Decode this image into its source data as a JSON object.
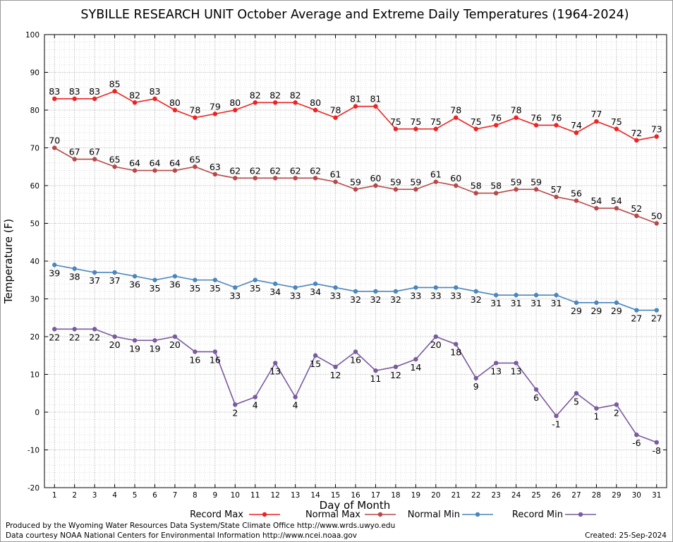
{
  "chart_data": {
    "type": "line",
    "title": "SYBILLE RESEARCH UNIT October Average and Extreme Daily Temperatures (1964-2024)",
    "xlabel": "Day of Month",
    "ylabel": "Temperature (F)",
    "x": [
      1,
      2,
      3,
      4,
      5,
      6,
      7,
      8,
      9,
      10,
      11,
      12,
      13,
      14,
      15,
      16,
      17,
      18,
      19,
      20,
      21,
      22,
      23,
      24,
      25,
      26,
      27,
      28,
      29,
      30,
      31
    ],
    "ylim": [
      -20,
      100
    ],
    "yticks": [
      -20,
      -10,
      0,
      10,
      20,
      30,
      40,
      50,
      60,
      70,
      80,
      90,
      100
    ],
    "grid": true,
    "legend_position": "bottom",
    "series": [
      {
        "name": "Record Max",
        "color": "#ee2222",
        "label_pos": "above",
        "values": [
          83,
          83,
          83,
          85,
          82,
          83,
          80,
          78,
          79,
          80,
          82,
          82,
          82,
          80,
          78,
          81,
          81,
          75,
          75,
          75,
          78,
          75,
          76,
          78,
          76,
          76,
          74,
          77,
          75,
          72,
          73
        ]
      },
      {
        "name": "Normal Max",
        "color": "#b84848",
        "label_pos": "above",
        "values": [
          70,
          67,
          67,
          65,
          64,
          64,
          64,
          65,
          63,
          62,
          62,
          62,
          62,
          62,
          61,
          59,
          60,
          59,
          59,
          61,
          60,
          58,
          58,
          59,
          59,
          57,
          56,
          54,
          54,
          52,
          50
        ]
      },
      {
        "name": "Normal Min",
        "color": "#4a86be",
        "label_pos": "below",
        "values": [
          39,
          38,
          37,
          37,
          36,
          35,
          36,
          35,
          35,
          33,
          35,
          34,
          33,
          34,
          33,
          32,
          32,
          32,
          33,
          33,
          33,
          32,
          31,
          31,
          31,
          31,
          29,
          29,
          29,
          27,
          27
        ]
      },
      {
        "name": "Record Min",
        "color": "#7a5a9e",
        "label_pos": "below",
        "values": [
          22,
          22,
          22,
          20,
          19,
          19,
          20,
          16,
          16,
          2,
          4,
          13,
          4,
          15,
          12,
          16,
          11,
          12,
          14,
          20,
          18,
          9,
          13,
          13,
          6,
          -1,
          5,
          1,
          2,
          -6,
          -8
        ]
      }
    ]
  },
  "footer": {
    "produced_by": "Produced by the Wyoming Water Resources Data System/State Climate Office http://www.wrds.uwyo.edu",
    "data_courtesy": "Data courtesy NOAA National Centers for Environmental Information http://www.ncei.noaa.gov",
    "created": "Created:  25-Sep-2024"
  }
}
